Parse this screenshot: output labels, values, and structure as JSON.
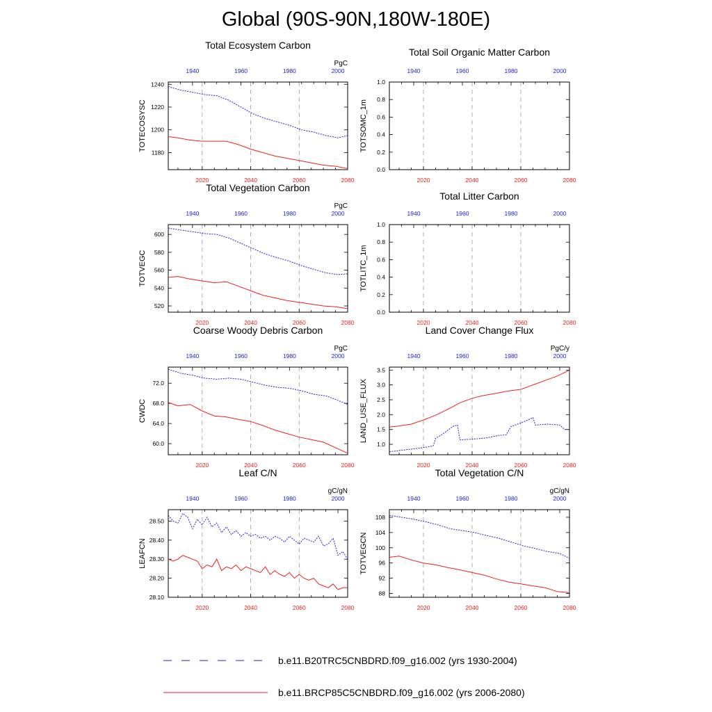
{
  "page": {
    "title": "Global (90S-90N,180W-180E)"
  },
  "colors": {
    "series1": "#2020dd",
    "series2": "#ee2020",
    "grid": "#999999"
  },
  "legend": [
    {
      "label": "b.e11.B20TRC5CNBDRD.f09_g16.002 (yrs 1930-2004)",
      "color": "#2020dd",
      "style": "dashed"
    },
    {
      "label": "b.e11.BRCP85C5CNBDRD.f09_g16.002 (yrs 2006-2080)",
      "color": "#ee2020",
      "style": "solid"
    }
  ],
  "chart_data": [
    {
      "type": "line",
      "title": "Total Ecosystem Carbon",
      "ylabel": "TOTECOSYSC",
      "units": "PgC",
      "xlim_bottom": [
        2006,
        2080
      ],
      "xticks_bottom": [
        2020,
        2040,
        2060,
        2080
      ],
      "xlim_top": [
        1930,
        2004
      ],
      "xticks_top": [
        1940,
        1960,
        1980,
        2000
      ],
      "ylim": [
        1165,
        1242
      ],
      "yticks": [
        1180,
        1200,
        1220,
        1240
      ],
      "ytick_labels": [
        "1180",
        "1200",
        "1220",
        "1240"
      ],
      "series": [
        {
          "axis": "top",
          "x": [
            1930,
            1935,
            1940,
            1945,
            1950,
            1955,
            1960,
            1965,
            1970,
            1975,
            1980,
            1985,
            1990,
            1995,
            2000,
            2004
          ],
          "values": [
            1238,
            1235,
            1233,
            1231,
            1230,
            1226,
            1220,
            1214,
            1210,
            1207,
            1204,
            1200,
            1198,
            1195,
            1193,
            1195
          ]
        },
        {
          "axis": "bottom",
          "x": [
            2006,
            2010,
            2015,
            2020,
            2025,
            2030,
            2035,
            2040,
            2045,
            2050,
            2055,
            2060,
            2065,
            2070,
            2075,
            2080
          ],
          "values": [
            1194,
            1193,
            1191,
            1190,
            1190,
            1190,
            1187,
            1183,
            1180,
            1177,
            1175,
            1173,
            1171,
            1169,
            1168,
            1166
          ]
        }
      ]
    },
    {
      "type": "line",
      "title": "Total Soil Organic Matter Carbon",
      "ylabel": "TOTSOMC_1m",
      "units": "",
      "xlim_bottom": [
        2006,
        2080
      ],
      "xticks_bottom": [
        2020,
        2040,
        2060,
        2080
      ],
      "xlim_top": [
        1930,
        2004
      ],
      "xticks_top": [
        1940,
        1960,
        1980,
        2000
      ],
      "ylim": [
        0,
        1
      ],
      "yticks": [
        0,
        0.2,
        0.4,
        0.6,
        0.8,
        1.0
      ],
      "ytick_labels": [
        "0.0",
        "0.2",
        "0.4",
        "0.6",
        "0.8",
        "1.0"
      ],
      "series": []
    },
    {
      "type": "line",
      "title": "Total Vegetation Carbon",
      "ylabel": "TOTVEGC",
      "units": "PgC",
      "xlim_bottom": [
        2006,
        2080
      ],
      "xticks_bottom": [
        2020,
        2040,
        2060,
        2080
      ],
      "xlim_top": [
        1930,
        2004
      ],
      "xticks_top": [
        1940,
        1960,
        1980,
        2000
      ],
      "ylim": [
        513,
        611
      ],
      "yticks": [
        520,
        540,
        560,
        580,
        600
      ],
      "ytick_labels": [
        "520",
        "540",
        "560",
        "580",
        "600"
      ],
      "series": [
        {
          "axis": "top",
          "x": [
            1930,
            1935,
            1940,
            1945,
            1950,
            1955,
            1960,
            1965,
            1970,
            1975,
            1980,
            1985,
            1990,
            1995,
            2000,
            2004
          ],
          "values": [
            607,
            605,
            603,
            601,
            600,
            596,
            590,
            584,
            578,
            574,
            570,
            565,
            561,
            557,
            555,
            556
          ]
        },
        {
          "axis": "bottom",
          "x": [
            2006,
            2010,
            2015,
            2020,
            2025,
            2030,
            2035,
            2040,
            2045,
            2050,
            2055,
            2060,
            2065,
            2070,
            2075,
            2080
          ],
          "values": [
            552,
            553,
            550,
            548,
            546,
            547,
            542,
            537,
            532,
            529,
            526,
            524,
            522,
            520,
            519,
            517
          ]
        }
      ]
    },
    {
      "type": "line",
      "title": "Total Litter Carbon",
      "ylabel": "TOTLITC_1m",
      "units": "",
      "xlim_bottom": [
        2006,
        2080
      ],
      "xticks_bottom": [
        2020,
        2040,
        2060,
        2080
      ],
      "xlim_top": [
        1930,
        2004
      ],
      "xticks_top": [
        1940,
        1960,
        1980,
        2000
      ],
      "ylim": [
        0,
        1
      ],
      "yticks": [
        0,
        0.2,
        0.4,
        0.6,
        0.8,
        1.0
      ],
      "ytick_labels": [
        "0.0",
        "0.2",
        "0.4",
        "0.6",
        "0.8",
        "1.0"
      ],
      "series": []
    },
    {
      "type": "line",
      "title": "Coarse Woody Debris Carbon",
      "ylabel": "CWDC",
      "units": "PgC",
      "xlim_bottom": [
        2006,
        2080
      ],
      "xticks_bottom": [
        2020,
        2040,
        2060,
        2080
      ],
      "xlim_top": [
        1930,
        2004
      ],
      "xticks_top": [
        1940,
        1960,
        1980,
        2000
      ],
      "ylim": [
        57.8,
        75.2
      ],
      "yticks": [
        60,
        64,
        68,
        72
      ],
      "ytick_labels": [
        "60.0",
        "64.0",
        "68.0",
        "72.0"
      ],
      "series": [
        {
          "axis": "top",
          "x": [
            1930,
            1935,
            1940,
            1945,
            1950,
            1955,
            1960,
            1965,
            1970,
            1975,
            1980,
            1985,
            1990,
            1995,
            2000,
            2004
          ],
          "values": [
            74.8,
            74.0,
            73.6,
            73.0,
            72.8,
            73.0,
            72.8,
            72.2,
            71.6,
            71.2,
            71.0,
            70.5,
            69.8,
            69.5,
            68.6,
            67.8
          ]
        },
        {
          "axis": "bottom",
          "x": [
            2006,
            2010,
            2015,
            2020,
            2025,
            2030,
            2035,
            2040,
            2045,
            2050,
            2055,
            2060,
            2065,
            2070,
            2075,
            2080
          ],
          "values": [
            68.2,
            67.5,
            67.8,
            66.5,
            65.5,
            65.3,
            64.8,
            64.4,
            63.6,
            62.7,
            62.0,
            61.3,
            60.8,
            60.3,
            59.2,
            58.1
          ]
        }
      ]
    },
    {
      "type": "line",
      "title": "Land Cover Change Flux",
      "ylabel": "LAND_USE_FLUX",
      "units": "PgC/y",
      "xlim_bottom": [
        2006,
        2080
      ],
      "xticks_bottom": [
        2020,
        2040,
        2060,
        2080
      ],
      "xlim_top": [
        1930,
        2004
      ],
      "xticks_top": [
        1940,
        1960,
        1980,
        2000
      ],
      "ylim": [
        0.65,
        3.6
      ],
      "yticks": [
        1.0,
        1.5,
        2.0,
        2.5,
        3.0,
        3.5
      ],
      "ytick_labels": [
        "1.0",
        "1.5",
        "2.0",
        "2.5",
        "3.0",
        "3.5"
      ],
      "series": [
        {
          "axis": "top",
          "x": [
            1930,
            1935,
            1940,
            1945,
            1948,
            1949,
            1952,
            1956,
            1958,
            1959,
            1965,
            1970,
            1975,
            1978,
            1980,
            1985,
            1989,
            1990,
            1995,
            2000,
            2002,
            2004
          ],
          "values": [
            0.75,
            0.8,
            0.85,
            0.9,
            0.95,
            1.2,
            1.35,
            1.6,
            1.65,
            1.15,
            1.18,
            1.22,
            1.3,
            1.32,
            1.6,
            1.75,
            1.9,
            1.65,
            1.68,
            1.65,
            1.5,
            1.5
          ]
        },
        {
          "axis": "bottom",
          "x": [
            2006,
            2010,
            2015,
            2020,
            2025,
            2030,
            2035,
            2040,
            2045,
            2050,
            2055,
            2060,
            2065,
            2070,
            2075,
            2080
          ],
          "values": [
            1.58,
            1.62,
            1.68,
            1.82,
            1.98,
            2.18,
            2.4,
            2.55,
            2.65,
            2.72,
            2.8,
            2.85,
            3.0,
            3.15,
            3.3,
            3.5
          ]
        }
      ]
    },
    {
      "type": "line",
      "title": "Leaf C/N",
      "ylabel": "LEAFCN",
      "units": "gC/gN",
      "xlim_bottom": [
        2006,
        2080
      ],
      "xticks_bottom": [
        2020,
        2040,
        2060,
        2080
      ],
      "xlim_top": [
        1930,
        2004
      ],
      "xticks_top": [
        1940,
        1960,
        1980,
        2000
      ],
      "ylim": [
        28.1,
        28.56
      ],
      "yticks": [
        28.1,
        28.2,
        28.3,
        28.4,
        28.5
      ],
      "ytick_labels": [
        "28.10",
        "28.20",
        "28.30",
        "28.40",
        "28.50"
      ],
      "series": [
        {
          "axis": "top",
          "x": [
            1930,
            1932,
            1934,
            1936,
            1938,
            1940,
            1942,
            1944,
            1946,
            1948,
            1950,
            1952,
            1954,
            1956,
            1958,
            1960,
            1962,
            1964,
            1966,
            1968,
            1970,
            1972,
            1974,
            1976,
            1978,
            1980,
            1982,
            1984,
            1986,
            1988,
            1990,
            1992,
            1994,
            1996,
            1998,
            2000,
            2002,
            2004
          ],
          "values": [
            28.53,
            28.5,
            28.49,
            28.54,
            28.52,
            28.46,
            28.51,
            28.48,
            28.52,
            28.47,
            28.49,
            28.44,
            28.47,
            28.43,
            28.45,
            28.42,
            28.44,
            28.42,
            28.43,
            28.41,
            28.42,
            28.4,
            28.42,
            28.41,
            28.39,
            28.42,
            28.4,
            28.38,
            28.41,
            28.4,
            28.39,
            28.42,
            28.37,
            28.38,
            28.41,
            28.32,
            28.34,
            28.3
          ]
        },
        {
          "axis": "bottom",
          "x": [
            2006,
            2008,
            2010,
            2012,
            2014,
            2016,
            2018,
            2020,
            2022,
            2024,
            2026,
            2028,
            2030,
            2032,
            2034,
            2036,
            2038,
            2040,
            2042,
            2044,
            2046,
            2048,
            2050,
            2052,
            2054,
            2056,
            2058,
            2060,
            2062,
            2064,
            2066,
            2068,
            2070,
            2072,
            2074,
            2076,
            2078,
            2080
          ],
          "values": [
            28.3,
            28.29,
            28.3,
            28.32,
            28.31,
            28.3,
            28.29,
            28.25,
            28.27,
            28.26,
            28.3,
            28.24,
            28.26,
            28.25,
            28.27,
            28.24,
            28.26,
            28.25,
            28.24,
            28.23,
            28.26,
            28.22,
            28.24,
            28.22,
            28.21,
            28.23,
            28.2,
            28.22,
            28.2,
            28.19,
            28.2,
            28.17,
            28.16,
            28.15,
            28.17,
            28.14,
            28.15,
            28.15
          ]
        }
      ]
    },
    {
      "type": "line",
      "title": "Total Vegetation C/N",
      "ylabel": "TOTVEGCN",
      "units": "gC/gN",
      "xlim_bottom": [
        2006,
        2080
      ],
      "xticks_bottom": [
        2020,
        2040,
        2060,
        2080
      ],
      "xlim_top": [
        1930,
        2004
      ],
      "xticks_top": [
        1940,
        1960,
        1980,
        2000
      ],
      "ylim": [
        87,
        110
      ],
      "yticks": [
        88,
        92,
        96,
        100,
        104,
        108
      ],
      "ytick_labels": [
        "88",
        "92",
        "96",
        "100",
        "104",
        "108"
      ],
      "series": [
        {
          "axis": "top",
          "x": [
            1930,
            1935,
            1940,
            1945,
            1950,
            1955,
            1960,
            1965,
            1970,
            1975,
            1980,
            1985,
            1990,
            1995,
            2000,
            2004
          ],
          "values": [
            108.5,
            108,
            107.5,
            106.8,
            106,
            105,
            104.5,
            104,
            103.2,
            102.5,
            101.5,
            100.5,
            99.8,
            99,
            98.5,
            97.2
          ]
        },
        {
          "axis": "bottom",
          "x": [
            2006,
            2010,
            2015,
            2020,
            2025,
            2030,
            2035,
            2040,
            2045,
            2050,
            2055,
            2060,
            2065,
            2070,
            2075,
            2080
          ],
          "values": [
            97.5,
            97.8,
            96.8,
            96,
            95.5,
            94.8,
            94.2,
            93.5,
            92.8,
            91.8,
            91,
            90.5,
            90,
            89.5,
            88.5,
            88.2
          ]
        }
      ]
    }
  ]
}
